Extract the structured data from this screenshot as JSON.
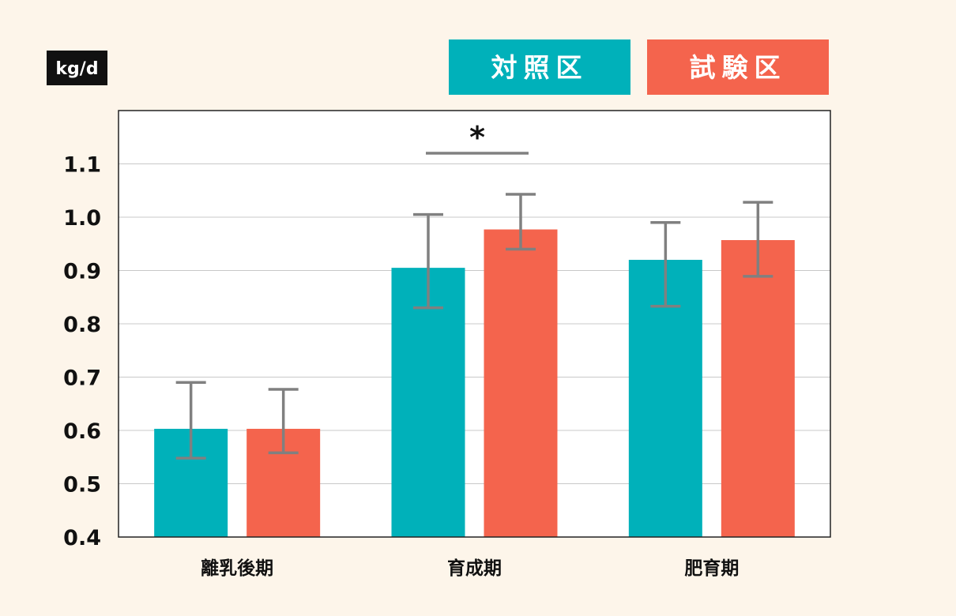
{
  "chart_data": {
    "type": "bar",
    "unit_label": "kg/d",
    "categories": [
      "離乳後期",
      "育成期",
      "肥育期"
    ],
    "series": [
      {
        "name": "対照区",
        "color": "#00b1ba",
        "values": [
          0.603,
          0.905,
          0.92
        ],
        "err_low": [
          0.548,
          0.83,
          0.833
        ],
        "err_high": [
          0.69,
          1.005,
          0.99
        ]
      },
      {
        "name": "試験区",
        "color": "#f4644d",
        "values": [
          0.603,
          0.977,
          0.957
        ],
        "err_low": [
          0.558,
          0.94,
          0.889
        ],
        "err_high": [
          0.677,
          1.043,
          1.028
        ]
      }
    ],
    "ylim": [
      0.4,
      1.2
    ],
    "yticks": [
      0.4,
      0.5,
      0.6,
      0.7,
      0.8,
      0.9,
      1.0,
      1.1
    ],
    "ytick_labels": [
      "0.4",
      "0.5",
      "0.6",
      "0.7",
      "0.8",
      "0.9",
      "1.0",
      "1.1"
    ],
    "grid": true,
    "legend_position": "top-right",
    "significance": [
      {
        "category_index": 1,
        "mark": "*"
      }
    ]
  }
}
